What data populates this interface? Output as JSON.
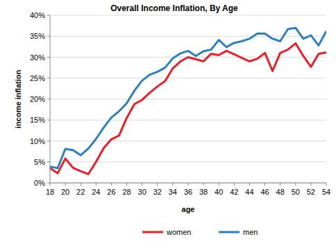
{
  "chart_data": {
    "type": "line",
    "title": "Overall Income Inflation, By Age",
    "x_label": "age",
    "y_label": "income inflation",
    "x": [
      18,
      19,
      20,
      21,
      22,
      23,
      24,
      25,
      26,
      27,
      28,
      29,
      30,
      31,
      32,
      33,
      34,
      35,
      36,
      37,
      38,
      39,
      40,
      41,
      42,
      43,
      44,
      45,
      46,
      47,
      48,
      49,
      50,
      51,
      52,
      53,
      54
    ],
    "series": [
      {
        "name": "women",
        "color": "#ee1c25",
        "values": [
          3.5,
          2.3,
          5.8,
          3.6,
          2.8,
          2.1,
          5,
          8.3,
          10.4,
          11.3,
          15.5,
          18.8,
          19.8,
          21.5,
          23,
          24.3,
          27.3,
          29,
          30,
          29.5,
          29,
          30.8,
          30.5,
          31.5,
          30.7,
          29.8,
          29,
          29.6,
          31,
          26.7,
          31,
          31.8,
          33.3,
          30.3,
          27.7,
          30.8,
          31.1
        ]
      },
      {
        "name": "men",
        "color": "#2a7fc4",
        "values": [
          3.9,
          3.5,
          8.1,
          7.8,
          6.6,
          8.2,
          10.5,
          13.2,
          15.6,
          17.1,
          19,
          22,
          24.4,
          25.8,
          26.5,
          27.5,
          29.7,
          30.9,
          31.5,
          30.3,
          31.4,
          31.8,
          34.1,
          32.4,
          33.4,
          33.8,
          34.4,
          35.6,
          35.6,
          34.4,
          33.8,
          36.7,
          37,
          34.4,
          35.2,
          32.8,
          36.2
        ]
      }
    ],
    "xlim": [
      18,
      54
    ],
    "xticks": [
      18,
      20,
      22,
      24,
      26,
      28,
      30,
      32,
      34,
      36,
      38,
      40,
      42,
      44,
      46,
      48,
      50,
      52,
      54
    ],
    "ylim": [
      0,
      40
    ],
    "yticks": [
      {
        "value": 0,
        "label": "0%"
      },
      {
        "value": 5,
        "label": "5%"
      },
      {
        "value": 10,
        "label": "10%"
      },
      {
        "value": 15,
        "label": "15%"
      },
      {
        "value": 20,
        "label": "20%"
      },
      {
        "value": 25,
        "label": "25%"
      },
      {
        "value": 30,
        "label": "30%"
      },
      {
        "value": 35,
        "label": "35%"
      },
      {
        "value": 40,
        "label": "40%"
      }
    ],
    "grid": true,
    "legend": "bottom"
  }
}
